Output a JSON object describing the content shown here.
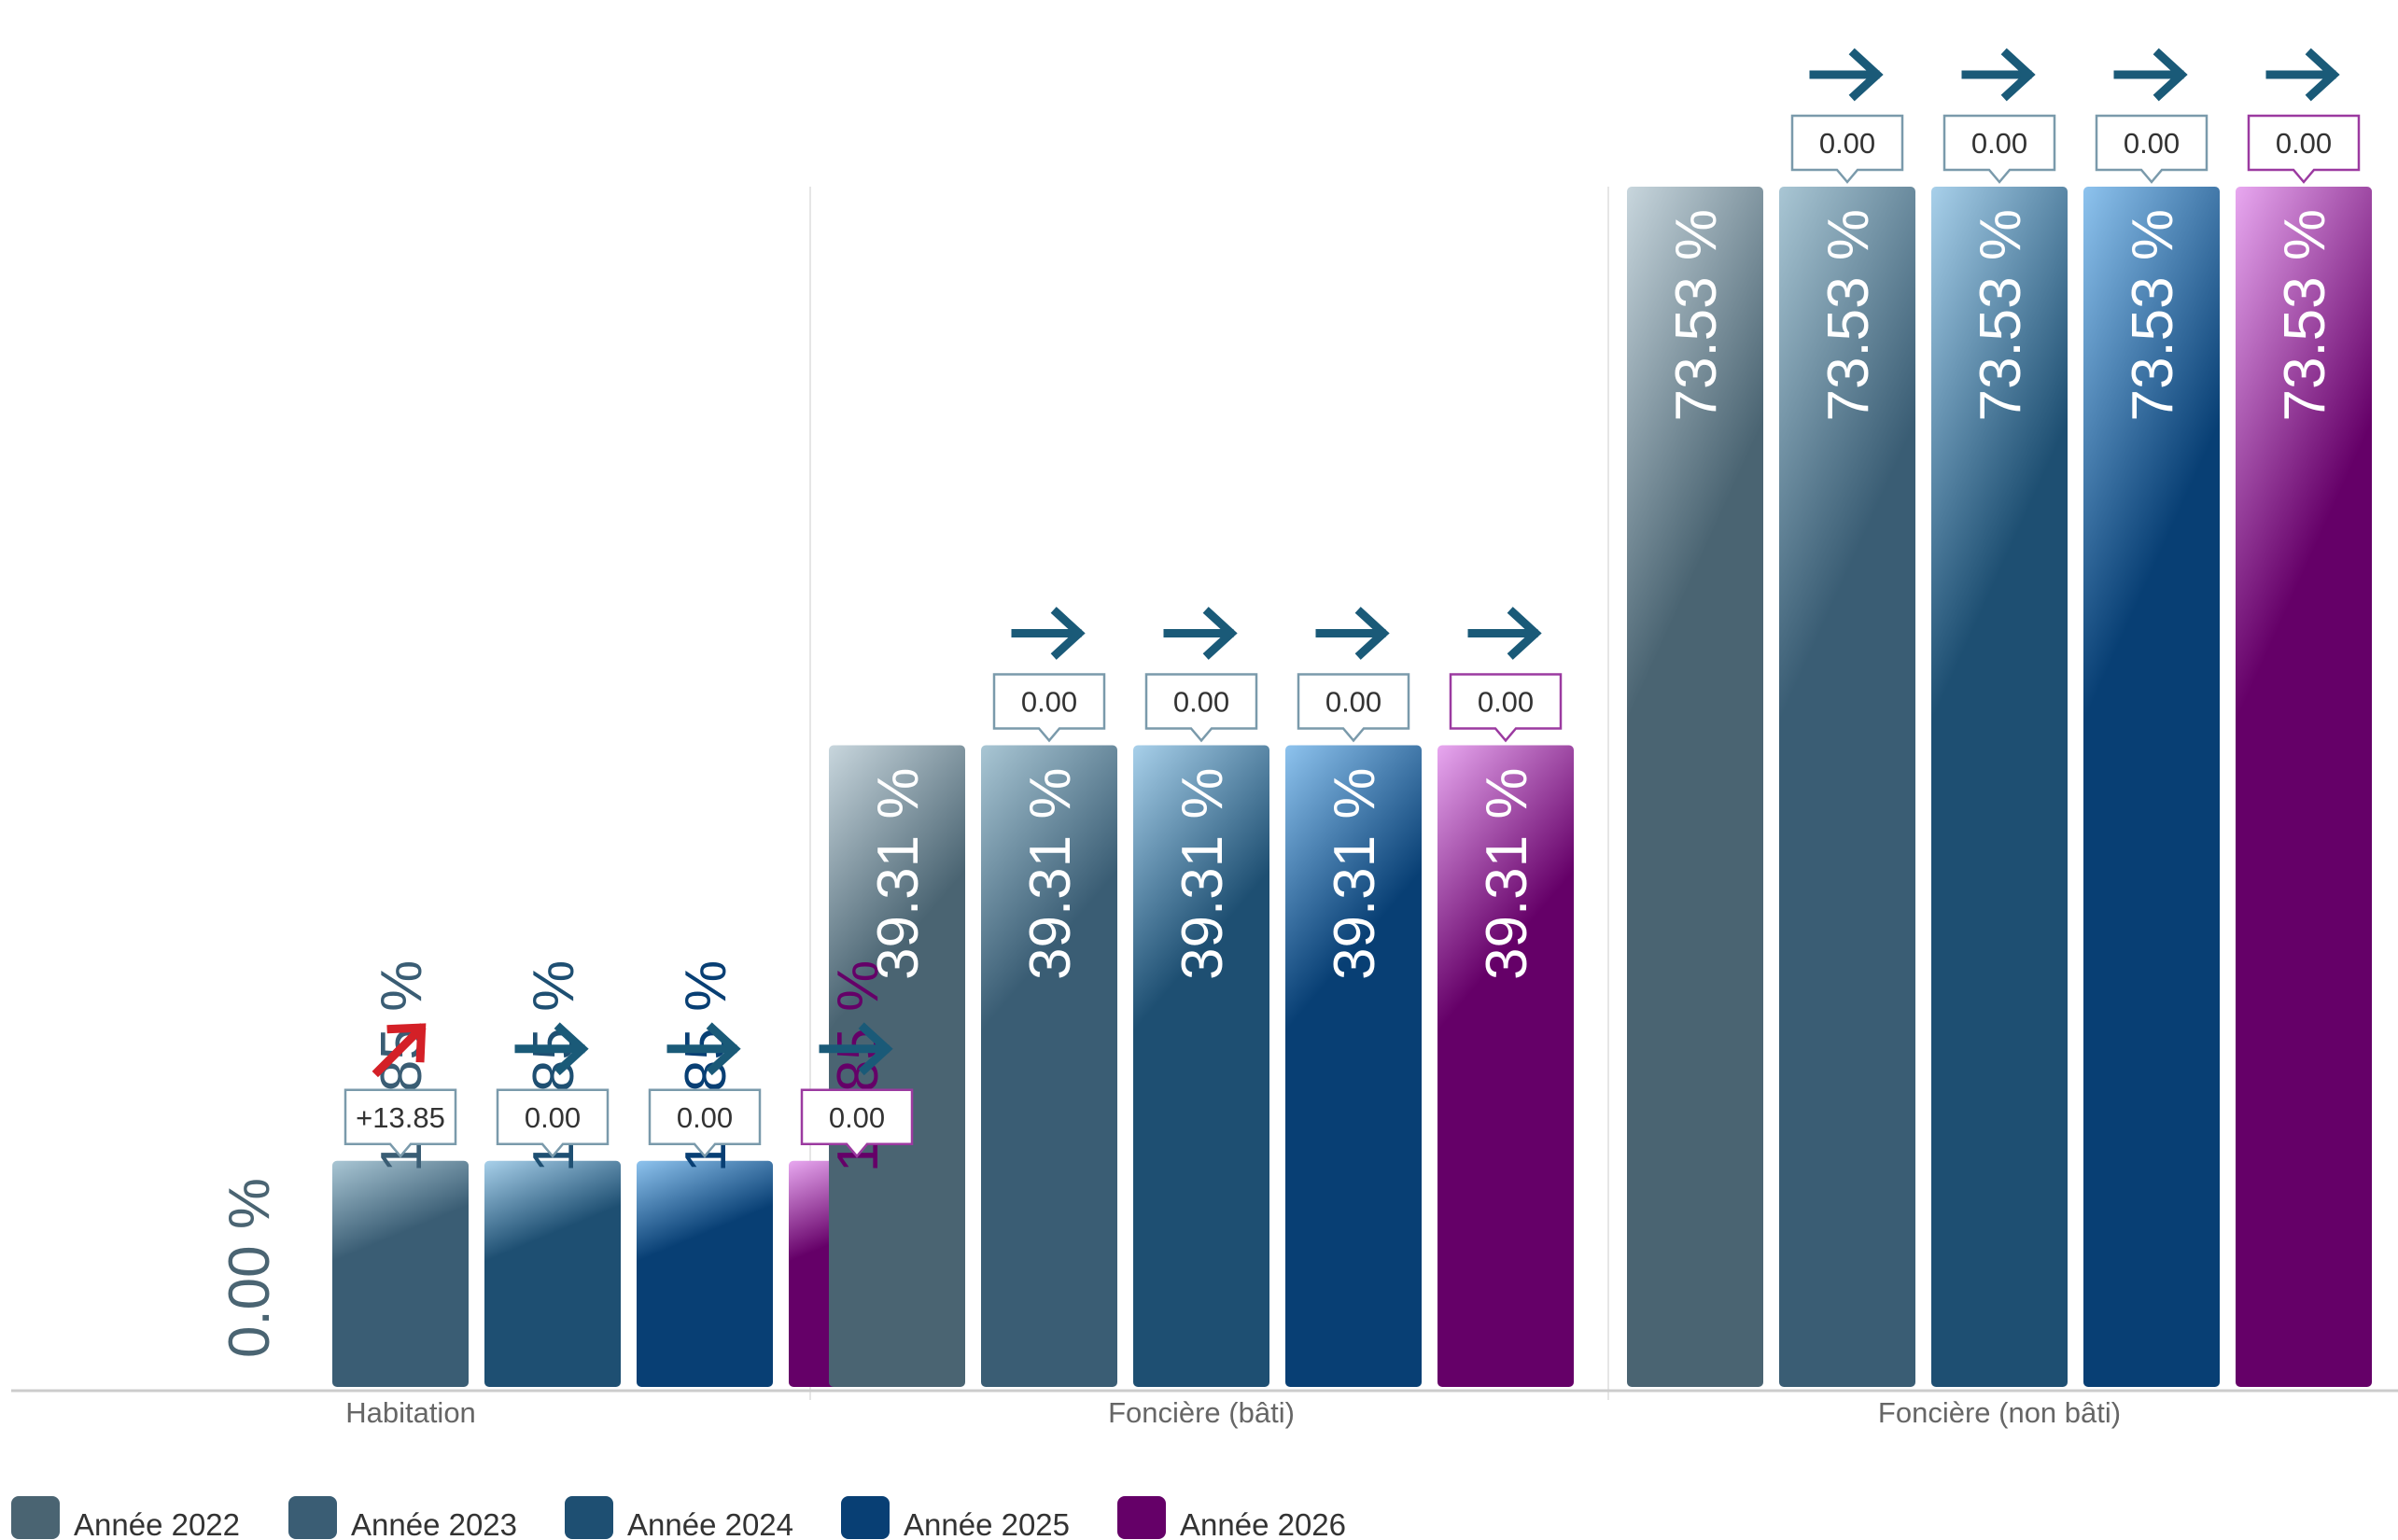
{
  "chart_data": {
    "type": "bar",
    "categories": [
      "Habitation",
      "Foncière (bâti)",
      "Foncière (non bâti)"
    ],
    "series": [
      {
        "name": "Année 2022",
        "color": "#4a6472",
        "values": [
          0.0,
          39.31,
          73.53
        ],
        "value_labels": [
          "0.00 %",
          "39.31 %",
          "73.53 %"
        ],
        "deltas": [
          null,
          null,
          null
        ],
        "trends": [
          null,
          null,
          null
        ]
      },
      {
        "name": "Année 2023",
        "color": "#3a5d74",
        "values": [
          13.85,
          39.31,
          73.53
        ],
        "value_labels": [
          "13.85 %",
          "39.31 %",
          "73.53 %"
        ],
        "deltas": [
          "+13.85",
          "0.00",
          "0.00"
        ],
        "trends": [
          "up",
          "flat",
          "flat"
        ]
      },
      {
        "name": "Année 2024",
        "color": "#1e4f72",
        "values": [
          13.85,
          39.31,
          73.53
        ],
        "value_labels": [
          "13.85 %",
          "39.31 %",
          "73.53 %"
        ],
        "deltas": [
          "0.00",
          "0.00",
          "0.00"
        ],
        "trends": [
          "flat",
          "flat",
          "flat"
        ]
      },
      {
        "name": "Année 2025",
        "color": "#083f74",
        "values": [
          13.85,
          39.31,
          73.53
        ],
        "value_labels": [
          "13.85 %",
          "39.31 %",
          "73.53 %"
        ],
        "deltas": [
          "0.00",
          "0.00",
          "0.00"
        ],
        "trends": [
          "flat",
          "flat",
          "flat"
        ]
      },
      {
        "name": "Année 2026",
        "color": "#650068",
        "values": [
          13.85,
          39.31,
          73.53
        ],
        "value_labels": [
          "13.85 %",
          "39.31 %",
          "73.53 %"
        ],
        "deltas": [
          "0.00",
          "0.00",
          "0.00"
        ],
        "trends": [
          "flat",
          "flat",
          "flat"
        ]
      }
    ],
    "ylim": [
      0,
      73.53
    ],
    "legend_position": "bottom-left",
    "grid": false,
    "colors": {
      "up_arrow": "#d42027",
      "flat_arrow": "#1a5a78",
      "axis": "#cccccc",
      "value_text_dark": "#4a6472"
    }
  }
}
